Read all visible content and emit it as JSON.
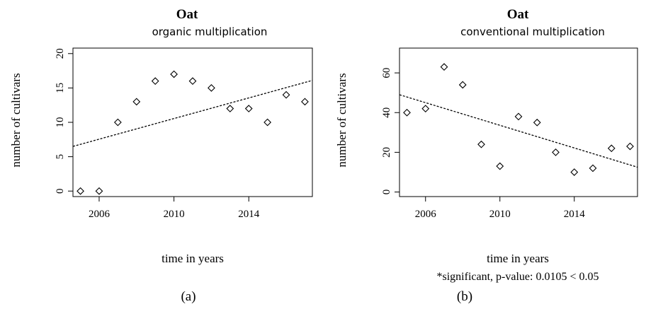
{
  "chart_data": [
    {
      "type": "scatter",
      "title": "Oat",
      "subtitle": "organic multiplication",
      "xlabel": "time in years",
      "ylabel": "number of cultivars",
      "panel_label": "(a)",
      "note": "",
      "xlim": [
        2004.6,
        2017.4
      ],
      "ylim": [
        -0.8,
        20.8
      ],
      "xticks": [
        2006,
        2010,
        2014
      ],
      "yticks": [
        0,
        5,
        10,
        15,
        20
      ],
      "points": {
        "x": [
          2005,
          2006,
          2007,
          2008,
          2009,
          2010,
          2011,
          2012,
          2013,
          2014,
          2015,
          2016,
          2017
        ],
        "y": [
          0,
          0,
          10,
          13,
          16,
          17,
          16,
          15,
          12,
          12,
          10,
          14,
          13
        ]
      },
      "trend": {
        "x": [
          2004.6,
          2017.4
        ],
        "y": [
          6.5,
          16.1
        ]
      },
      "grid": false
    },
    {
      "type": "scatter",
      "title": "Oat",
      "subtitle": "conventional multiplication",
      "xlabel": "time in years",
      "ylabel": "number of cultivars",
      "panel_label": "(b)",
      "note": "*significant, p-value:  0.0105  < 0.05",
      "xlim": [
        2004.6,
        2017.4
      ],
      "ylim": [
        -2.3,
        72.5
      ],
      "xticks": [
        2006,
        2010,
        2014
      ],
      "yticks": [
        0,
        20,
        40,
        60
      ],
      "points": {
        "x": [
          2005,
          2006,
          2007,
          2008,
          2009,
          2010,
          2011,
          2012,
          2013,
          2014,
          2015,
          2016,
          2017
        ],
        "y": [
          40,
          42,
          63,
          54,
          24,
          13,
          38,
          35,
          20,
          10,
          12,
          22,
          23
        ]
      },
      "trend": {
        "x": [
          2004.6,
          2017.4
        ],
        "y": [
          49,
          12.5
        ]
      },
      "grid": false
    }
  ]
}
